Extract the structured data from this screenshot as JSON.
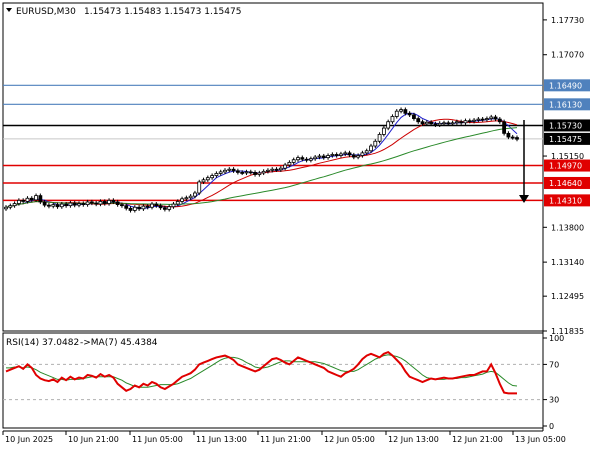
{
  "header": {
    "symbol": "EURUSD,M30",
    "ohlc": "1.15473 1.15483 1.15473 1.15475"
  },
  "colors": {
    "background": "#ffffff",
    "frame": "#000000",
    "candle": "#000000",
    "ma_fast": "#1f1fcc",
    "ma_mid": "#cc0000",
    "ma_slow": "#2a8a2a",
    "line_blue": "#4f81bd",
    "line_black": "#000000",
    "line_red": "#e00000",
    "rsi": "#e00000",
    "rsi_ma": "#2a8a2a",
    "rsi_level": "#b0b0b0",
    "arrow": "#000000"
  },
  "chart_data": {
    "type": "candlestick",
    "symbol": "EURUSD",
    "timeframe": "M30",
    "price_axis_labels": [
      "1.17730",
      "1.17070",
      "1.16490",
      "1.16130",
      "1.15730",
      "1.15475",
      "1.15150",
      "1.14970",
      "1.14640",
      "1.14310",
      "1.13800",
      "1.13140",
      "1.12495",
      "1.11835"
    ],
    "price_ticks": [
      1.1773,
      1.1707,
      1.1515,
      1.138,
      1.1314,
      1.12495,
      1.11835
    ],
    "ylim": [
      1.11835,
      1.1805
    ],
    "current_price": 1.15475,
    "horizontal_lines": [
      {
        "price": 1.1649,
        "label": "1.16490",
        "color": "#4f81bd"
      },
      {
        "price": 1.1613,
        "label": "1.16130",
        "color": "#4f81bd"
      },
      {
        "price": 1.1573,
        "label": "1.15730",
        "color": "#000000"
      },
      {
        "price": 1.1497,
        "label": "1.14970",
        "color": "#e00000"
      },
      {
        "price": 1.1464,
        "label": "1.14640",
        "color": "#e00000"
      },
      {
        "price": 1.1431,
        "label": "1.14310",
        "color": "#e00000"
      }
    ],
    "x_axis_labels": [
      "10 Jun 2025",
      "10 Jun 21:00",
      "11 Jun 05:00",
      "11 Jun 13:00",
      "11 Jun 21:00",
      "12 Jun 05:00",
      "12 Jun 13:00",
      "12 Jun 21:00",
      "13 Jun 05:00"
    ],
    "closes": [
      1.1418,
      1.1421,
      1.1425,
      1.1431,
      1.1429,
      1.1435,
      1.1432,
      1.144,
      1.1428,
      1.1422,
      1.142,
      1.1423,
      1.1419,
      1.1424,
      1.1421,
      1.1426,
      1.1422,
      1.1425,
      1.1423,
      1.1428,
      1.1426,
      1.1424,
      1.1429,
      1.1425,
      1.1431,
      1.1428,
      1.1423,
      1.1421,
      1.1416,
      1.1412,
      1.1418,
      1.1415,
      1.142,
      1.1418,
      1.1424,
      1.1421,
      1.1417,
      1.1414,
      1.1419,
      1.1424,
      1.1429,
      1.1434,
      1.1436,
      1.1439,
      1.1445,
      1.1466,
      1.147,
      1.1474,
      1.1478,
      1.1482,
      1.1485,
      1.1488,
      1.149,
      1.1487,
      1.1484,
      1.1483,
      1.1485,
      1.1484,
      1.148,
      1.1483,
      1.1486,
      1.1488,
      1.149,
      1.1489,
      1.1492,
      1.1498,
      1.1503,
      1.1508,
      1.1512,
      1.1509,
      1.1507,
      1.151,
      1.1513,
      1.1515,
      1.1512,
      1.1516,
      1.1518,
      1.1516,
      1.1519,
      1.1521,
      1.1517,
      1.1513,
      1.1516,
      1.1521,
      1.1525,
      1.1534,
      1.1543,
      1.1556,
      1.1568,
      1.158,
      1.159,
      1.16,
      1.1603,
      1.1596,
      1.1593,
      1.1586,
      1.158,
      1.1576,
      1.1579,
      1.1576,
      1.1574,
      1.1577,
      1.1578,
      1.1576,
      1.1578,
      1.158,
      1.1578,
      1.1582,
      1.1581,
      1.1583,
      1.1585,
      1.1584,
      1.1586,
      1.1589,
      1.1585,
      1.158,
      1.1558,
      1.1551,
      1.155,
      1.1547
    ],
    "rsi": {
      "label": "RSI(14) 37.0482",
      "ma_label": "->MA(7) 45.4384",
      "period": 14,
      "value": 37.0482,
      "ma_period": 7,
      "ma_value": 45.4384,
      "levels": [
        30,
        70
      ],
      "axis_labels": [
        "100",
        "70",
        "30",
        "0"
      ],
      "ylim": [
        0,
        100
      ],
      "values": [
        62,
        64,
        66,
        68,
        65,
        70,
        66,
        58,
        54,
        52,
        51,
        53,
        50,
        55,
        52,
        56,
        53,
        55,
        54,
        58,
        57,
        55,
        59,
        56,
        58,
        55,
        48,
        44,
        40,
        42,
        46,
        44,
        48,
        46,
        50,
        48,
        44,
        42,
        45,
        48,
        52,
        56,
        58,
        60,
        64,
        70,
        72,
        74,
        76,
        78,
        79,
        80,
        78,
        75,
        70,
        68,
        66,
        64,
        62,
        64,
        68,
        72,
        76,
        77,
        75,
        72,
        70,
        74,
        78,
        76,
        74,
        72,
        70,
        68,
        66,
        62,
        60,
        58,
        56,
        60,
        62,
        65,
        70,
        76,
        80,
        82,
        80,
        78,
        82,
        84,
        80,
        75,
        70,
        62,
        56,
        54,
        52,
        50,
        52,
        54,
        53,
        54,
        55,
        54,
        54,
        55,
        56,
        57,
        58,
        58,
        60,
        62,
        62,
        70,
        60,
        48,
        38,
        37,
        37,
        37.0482
      ],
      "ma_values": [
        66,
        66,
        67,
        67,
        66,
        67,
        66,
        64,
        61,
        59,
        57,
        55,
        53,
        53,
        52,
        53,
        53,
        53,
        54,
        55,
        56,
        56,
        56,
        56,
        56,
        56,
        54,
        52,
        49,
        47,
        45,
        44,
        44,
        44,
        45,
        46,
        47,
        47,
        47,
        47,
        48,
        50,
        52,
        54,
        57,
        60,
        63,
        66,
        69,
        72,
        75,
        77,
        78,
        78,
        77,
        75,
        72,
        70,
        67,
        66,
        66,
        67,
        69,
        71,
        73,
        74,
        74,
        73,
        73,
        73,
        73,
        73,
        73,
        72,
        71,
        69,
        67,
        65,
        63,
        62,
        62,
        62,
        64,
        67,
        70,
        73,
        76,
        78,
        80,
        81,
        80,
        79,
        77,
        74,
        70,
        66,
        62,
        58,
        55,
        54,
        53,
        53,
        53,
        54,
        54,
        54,
        55,
        55,
        56,
        57,
        58,
        59,
        61,
        62,
        61,
        57,
        53,
        49,
        46,
        45.4384
      ]
    }
  }
}
